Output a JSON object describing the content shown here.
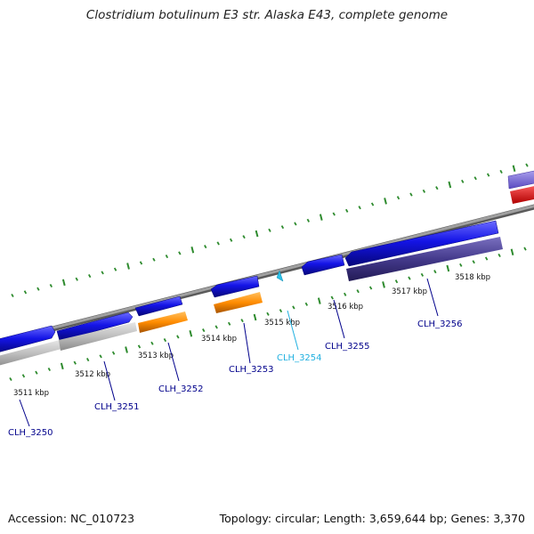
{
  "title": "Clostridium botulinum E3 str. Alaska E43, complete genome",
  "footer": {
    "accession": "Accession: NC_010723",
    "summary": "Topology: circular; Length: 3,659,644 bp; Genes: 3,370"
  },
  "colors": {
    "backbone": "#8c8c8c",
    "tick": "#2e8b2e",
    "gene_blue": "#1414e6",
    "gene_gray": "#b8b8b8",
    "gene_orange": "#ff8c00",
    "gene_navy": "#443a8c",
    "gene_violet": "#7a6ad8",
    "gene_red": "#ee0000",
    "gene_cyan": "#2bc0e8",
    "label_blue": "#00008b",
    "label_cyan": "#20b0e0"
  },
  "scale_labels": [
    {
      "text": "3511 kbp"
    },
    {
      "text": "3512 kbp"
    },
    {
      "text": "3513 kbp"
    },
    {
      "text": "3514 kbp"
    },
    {
      "text": "3515 kbp"
    },
    {
      "text": "3516 kbp"
    },
    {
      "text": "3517 kbp"
    },
    {
      "text": "3518 kbp"
    }
  ],
  "loci": [
    {
      "text": "CLH_3250",
      "color": "#00008b"
    },
    {
      "text": "CLH_3251",
      "color": "#00008b"
    },
    {
      "text": "CLH_3252",
      "color": "#00008b"
    },
    {
      "text": "CLH_3253",
      "color": "#00008b"
    },
    {
      "text": "CLH_3254",
      "color": "#20b0e0"
    },
    {
      "text": "CLH_3255",
      "color": "#00008b"
    },
    {
      "text": "CLH_3256",
      "color": "#00008b"
    }
  ]
}
